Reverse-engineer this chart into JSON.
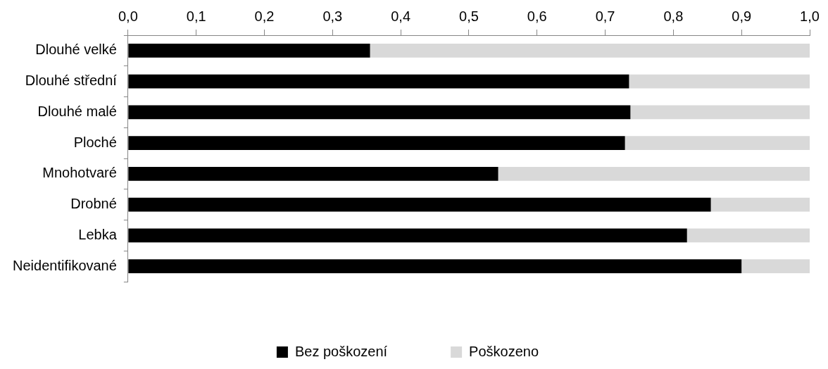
{
  "chart_data": {
    "type": "bar",
    "orientation": "horizontal",
    "stacked": true,
    "categories": [
      "Dlouhé velké",
      "Dlouhé střední",
      "Dlouhé malé",
      "Ploché",
      "Mnohotvaré",
      "Drobné",
      "Lebka",
      "Neidentifikované"
    ],
    "series": [
      {
        "name": "Bez poškození",
        "color": "#000000",
        "values": [
          0.355,
          0.735,
          0.737,
          0.729,
          0.543,
          0.855,
          0.82,
          0.9
        ]
      },
      {
        "name": "Poškozeno",
        "color": "#d9d9d9",
        "values": [
          0.645,
          0.265,
          0.263,
          0.271,
          0.457,
          0.145,
          0.18,
          0.1
        ]
      }
    ],
    "xlim": [
      0,
      1
    ],
    "xticks": [
      {
        "value": 0,
        "label": "0,0"
      },
      {
        "value": 0.1,
        "label": "0,1"
      },
      {
        "value": 0.2,
        "label": "0,2"
      },
      {
        "value": 0.3,
        "label": "0,3"
      },
      {
        "value": 0.4,
        "label": "0,4"
      },
      {
        "value": 0.5,
        "label": "0,5"
      },
      {
        "value": 0.6,
        "label": "0,6"
      },
      {
        "value": 0.7,
        "label": "0,7"
      },
      {
        "value": 0.8,
        "label": "0,8"
      },
      {
        "value": 0.9,
        "label": "0,9"
      },
      {
        "value": 1,
        "label": "1,0"
      }
    ],
    "grid": false,
    "legend": "bottom"
  }
}
